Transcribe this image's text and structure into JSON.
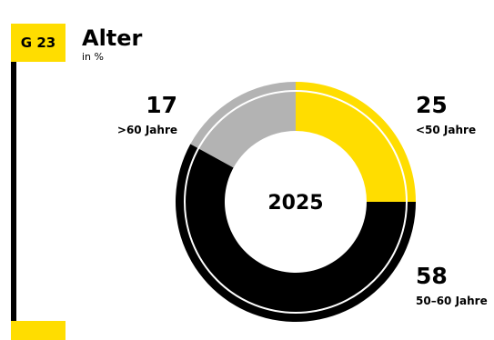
{
  "header": {
    "badge": "G 23",
    "title": "Alter",
    "subtitle": "in %"
  },
  "colors": {
    "accent": "#ffdd00",
    "dark": "#000000",
    "gray": "#b3b3b3"
  },
  "chart_data": {
    "type": "pie",
    "title": "Alter",
    "subtitle": "in %",
    "center_label": "2025",
    "slices": [
      {
        "label": "<50 Jahre",
        "value": 25,
        "color": "#ffdd00"
      },
      {
        "label": "50–60 Jahre",
        "value": 58,
        "color": "#000000"
      },
      {
        "label": ">60 Jahre",
        "value": 17,
        "color": "#b3b3b3"
      }
    ]
  }
}
